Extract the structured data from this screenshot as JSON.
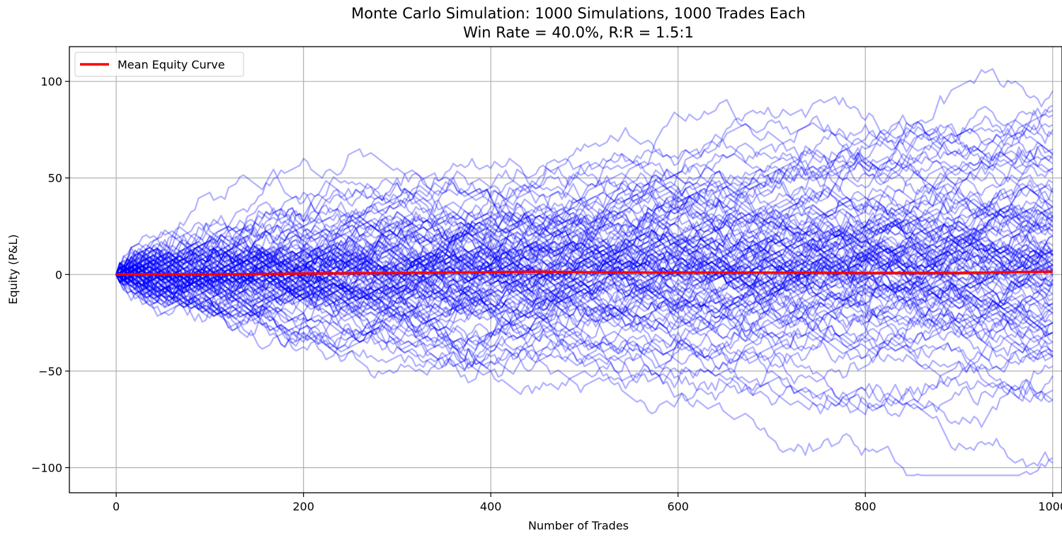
{
  "chart_data": {
    "type": "line",
    "title": "Monte Carlo Simulation: 1000 Simulations, 1000 Trades Each",
    "subtitle": "Win Rate = 40.0%, R:R = 1.5:1",
    "xlabel": "Number of Trades",
    "ylabel": "Equity (P&L)",
    "xlim": [
      -50,
      1010
    ],
    "ylim": [
      -113,
      118
    ],
    "xticks": [
      0,
      200,
      400,
      600,
      800,
      1000
    ],
    "yticks": [
      -100,
      -50,
      0,
      50,
      100
    ],
    "grid": true,
    "legend": {
      "position": "top-left",
      "entries": [
        "Mean Equity Curve"
      ]
    },
    "num_simulations": 1000,
    "trades_per_simulation": 1000,
    "win_rate": 0.4,
    "reward_risk": 1.5,
    "simulation_color": "#0000ff",
    "mean_color": "#ff0000",
    "series": [
      {
        "name": "Mean Equity Curve",
        "x": [
          0,
          100,
          200,
          300,
          400,
          450,
          500,
          600,
          700,
          800,
          900,
          950,
          1000
        ],
        "values": [
          0,
          0,
          0.5,
          0.8,
          1.2,
          1.5,
          1.2,
          1,
          1,
          0.8,
          0.8,
          1.2,
          1.5
        ]
      }
    ]
  }
}
